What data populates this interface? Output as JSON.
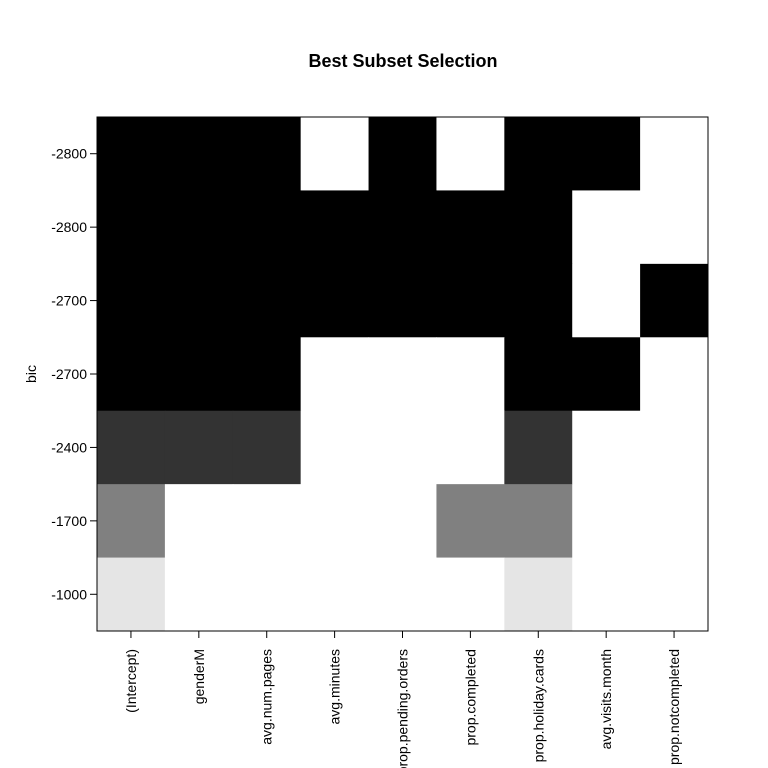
{
  "chart_data": {
    "type": "heatmap",
    "title": "Best Subset Selection",
    "ylabel": "bic",
    "xlabel": "",
    "x_categories": [
      "(Intercept)",
      "genderM",
      "avg.num.pages",
      "avg.minutes",
      "prop.pending.orders",
      "prop.completed",
      "prop.holiday.cards",
      "avg.visits.month",
      "prop.notcompleted"
    ],
    "y_categories": [
      "-2800",
      "-2800",
      "-2700",
      "-2700",
      "-2400",
      "-1700",
      "-1000"
    ],
    "row_shades": [
      "#000000",
      "#000000",
      "#000000",
      "#000000",
      "#333333",
      "#808080",
      "#e5e5e5"
    ],
    "matrix": [
      [
        1,
        1,
        1,
        0,
        1,
        0,
        1,
        1,
        0
      ],
      [
        1,
        1,
        1,
        1,
        1,
        1,
        1,
        0,
        0
      ],
      [
        1,
        1,
        1,
        1,
        1,
        1,
        1,
        0,
        1
      ],
      [
        1,
        1,
        1,
        0,
        0,
        0,
        1,
        1,
        0
      ],
      [
        1,
        1,
        1,
        0,
        0,
        0,
        1,
        0,
        0
      ],
      [
        1,
        0,
        0,
        0,
        0,
        1,
        1,
        0,
        0
      ],
      [
        1,
        0,
        0,
        0,
        0,
        0,
        1,
        0,
        0
      ]
    ],
    "grid": false,
    "legend": "none"
  }
}
